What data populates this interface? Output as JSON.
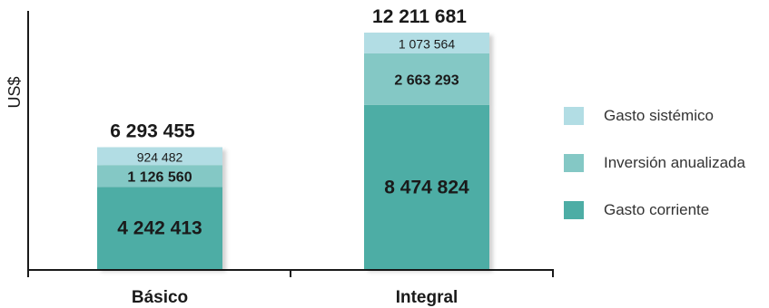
{
  "chart_data": {
    "type": "bar",
    "stacked": true,
    "ylabel": "US$",
    "categories": [
      "Básico",
      "Integral"
    ],
    "totals": [
      "6 293 455",
      "12 211 681"
    ],
    "series": [
      {
        "name": "Gasto corriente",
        "values": [
          4242413,
          8474824
        ],
        "labels": [
          "4 242 413",
          "8 474 824"
        ],
        "color": "#4dada5"
      },
      {
        "name": "Inversión anualizada",
        "values": [
          1126560,
          2663293
        ],
        "labels": [
          "1 126 560",
          "2 663 293"
        ],
        "color": "#84c8c5"
      },
      {
        "name": "Gasto sistémico",
        "values": [
          924482,
          1073564
        ],
        "labels": [
          "924 482",
          "1 073 564"
        ],
        "color": "#b2dde4"
      }
    ],
    "legend_order": [
      "Gasto sistémico",
      "Inversión anualizada",
      "Gasto corriente"
    ],
    "legend_position": "right",
    "grid": false
  }
}
